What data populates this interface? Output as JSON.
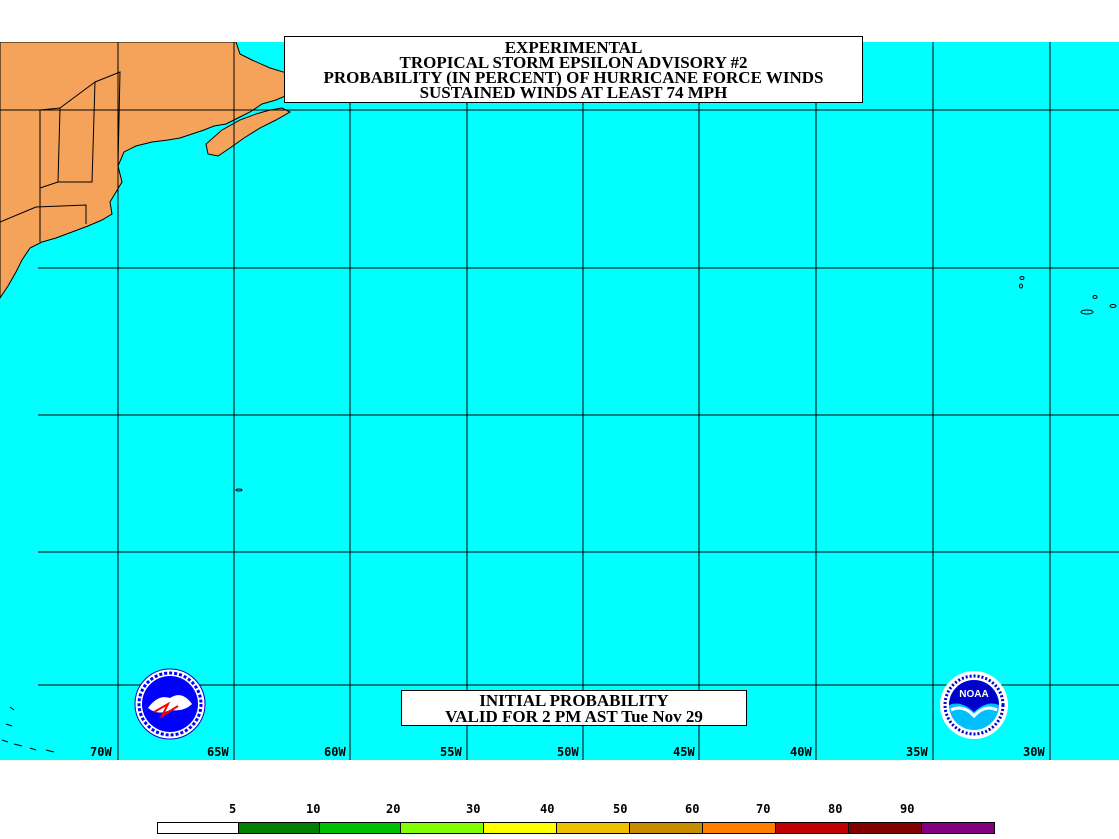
{
  "title": {
    "line1": "EXPERIMENTAL",
    "line2": "TROPICAL STORM EPSILON ADVISORY #2",
    "line3": "PROBABILITY (IN PERCENT) OF HURRICANE FORCE WINDS",
    "line4": "SUSTAINED WINDS AT LEAST 74 MPH"
  },
  "subtitle": {
    "line1": "INITIAL PROBABILITY",
    "line2": "VALID FOR 2 PM AST Tue Nov 29"
  },
  "longitude_labels": [
    "70W",
    "65W",
    "60W",
    "55W",
    "50W",
    "45W",
    "40W",
    "35W",
    "30W"
  ],
  "legend": {
    "labels": [
      "5",
      "10",
      "20",
      "30",
      "40",
      "50",
      "60",
      "70",
      "80",
      "90"
    ],
    "colors": [
      "#ffffff",
      "#007f00",
      "#00bf00",
      "#7fff00",
      "#ffff00",
      "#f0c000",
      "#c88c00",
      "#ff7f00",
      "#c00000",
      "#800000",
      "#800080"
    ]
  },
  "colors": {
    "ocean": "#00ffff",
    "land": "#f5a35a",
    "grid": "#000000"
  },
  "logos": {
    "left": "nws-logo",
    "right": "noaa-logo",
    "right_text": "NOAA"
  }
}
